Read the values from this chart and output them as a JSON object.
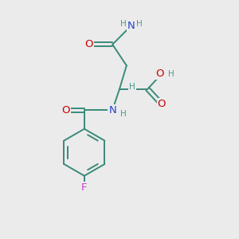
{
  "background_color": "#ebebeb",
  "bond_color": "#3a8a7a",
  "atom_colors": {
    "O": "#cc0000",
    "N": "#2244cc",
    "F": "#cc44cc",
    "H": "#4a9a8a",
    "C": "#3a8a7a"
  },
  "figsize": [
    3.0,
    3.0
  ],
  "dpi": 100,
  "xlim": [
    0,
    10
  ],
  "ylim": [
    0,
    10
  ]
}
